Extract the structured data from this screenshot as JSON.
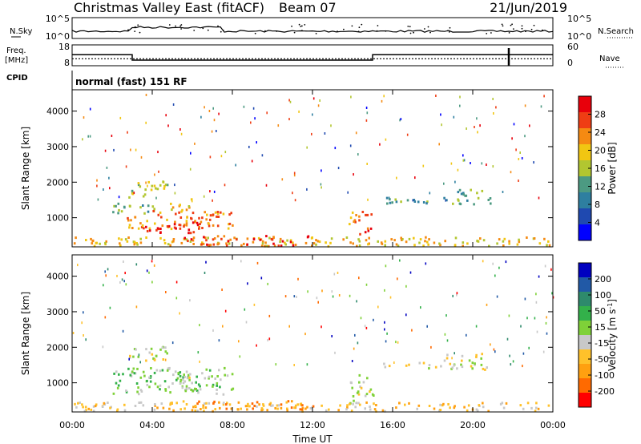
{
  "header": {
    "title": "Christmas Valley East (fitACF)",
    "beam": "Beam 07",
    "date": "21/Jun/2019"
  },
  "sky_panel": {
    "left_label": "N.Sky",
    "right_label": "N.Search",
    "left_ticks": [
      "10^5",
      "10^0"
    ],
    "right_ticks": [
      "10^5",
      "10^0"
    ]
  },
  "freq_panel": {
    "left_label_1": "Freq.",
    "left_label_2": "[MHz]",
    "right_label": "Nave",
    "left_ticks": [
      "18",
      "8"
    ],
    "right_ticks": [
      "60",
      "0"
    ],
    "freq_series": [
      {
        "t_start": 0.0,
        "t_end": 3.0,
        "freq": 13.3
      },
      {
        "t_start": 3.0,
        "t_end": 15.0,
        "freq": 10.7
      },
      {
        "t_start": 15.0,
        "t_end": 24.0,
        "freq": 13.3
      }
    ],
    "nave_level": 20,
    "nave_dip_time": 21.8
  },
  "cpid": {
    "label": "CPID",
    "value": "normal (fast) 151 RF"
  },
  "axes": {
    "ylabel": "Slant Range [km]",
    "xlabel": "Time UT",
    "yticks": [
      "1000",
      "2000",
      "3000",
      "4000"
    ],
    "xticks": [
      "00:00",
      "04:00",
      "08:00",
      "12:00",
      "16:00",
      "20:00",
      "00:00"
    ]
  },
  "power_scale": {
    "label": "Power [dB]",
    "ticks": [
      "4",
      "8",
      "12",
      "16",
      "20",
      "24",
      "28"
    ],
    "colors": [
      "#0000ff",
      "#1f49b0",
      "#2e7fa0",
      "#4c9a82",
      "#b2c630",
      "#f1c612",
      "#f58a12",
      "#ef3d14",
      "#e8000b"
    ]
  },
  "velocity_scale": {
    "label": "Velocity [m s",
    "label_sup": "-1",
    "label_end": "]",
    "ticks": [
      "200",
      "100",
      "50",
      "15",
      "-15",
      "-50",
      "-100",
      "-200"
    ],
    "colors": [
      "#0000c0",
      "#2159a6",
      "#2e8a6c",
      "#33b14a",
      "#7fd138",
      "#c8c8c8",
      "#ffc12a",
      "#ffa010",
      "#ff6a00",
      "#ff0000"
    ]
  },
  "chart_data": {
    "type": "heatmap",
    "xlim": [
      0,
      24
    ],
    "ylim": [
      180,
      4600
    ],
    "power_clusters": [
      {
        "t0": 2.8,
        "t1": 4.8,
        "r0": 1600,
        "r1": 2050,
        "level": 4
      },
      {
        "t0": 2.0,
        "t1": 4.5,
        "r0": 1150,
        "r1": 1450,
        "level": 3
      },
      {
        "t0": 2.6,
        "t1": 8.0,
        "r0": 700,
        "r1": 1250,
        "level": 6
      },
      {
        "t0": 3.5,
        "t1": 6.5,
        "r0": 600,
        "r1": 900,
        "level": 8
      },
      {
        "t0": 4.8,
        "t1": 6.0,
        "r0": 1200,
        "r1": 1550,
        "level": 5
      },
      {
        "t0": 13.8,
        "t1": 15.0,
        "r0": 800,
        "r1": 1250,
        "level": 6
      },
      {
        "t0": 14.2,
        "t1": 14.9,
        "r0": 400,
        "r1": 750,
        "level": 7
      },
      {
        "t0": 15.5,
        "t1": 21.0,
        "r0": 1400,
        "r1": 1600,
        "level": 3
      },
      {
        "t0": 18.5,
        "t1": 20.5,
        "r0": 1650,
        "r1": 1850,
        "level": 3
      },
      {
        "t0": 0.0,
        "t1": 24.0,
        "r0": 180,
        "r1": 480,
        "level": 5
      },
      {
        "t0": 5.5,
        "t1": 12.0,
        "r0": 200,
        "r1": 520,
        "level": 7
      }
    ],
    "velocity_clusters": [
      {
        "t0": 2.8,
        "t1": 4.8,
        "r0": 1600,
        "r1": 2050,
        "level": 5
      },
      {
        "t0": 2.0,
        "t1": 8.0,
        "r0": 700,
        "r1": 1450,
        "level": 4
      },
      {
        "t0": 5.0,
        "t1": 6.5,
        "r0": 800,
        "r1": 1200,
        "level": 5
      },
      {
        "t0": 13.8,
        "t1": 15.0,
        "r0": 400,
        "r1": 1250,
        "level": 5
      },
      {
        "t0": 15.5,
        "t1": 21.0,
        "r0": 1400,
        "r1": 1600,
        "level": 5
      },
      {
        "t0": 18.5,
        "t1": 20.5,
        "r0": 1650,
        "r1": 1850,
        "level": 5
      },
      {
        "t0": 0.0,
        "t1": 24.0,
        "r0": 180,
        "r1": 480,
        "level": 6
      },
      {
        "t0": 5.5,
        "t1": 12.0,
        "r0": 200,
        "r1": 520,
        "level": 7
      }
    ]
  }
}
